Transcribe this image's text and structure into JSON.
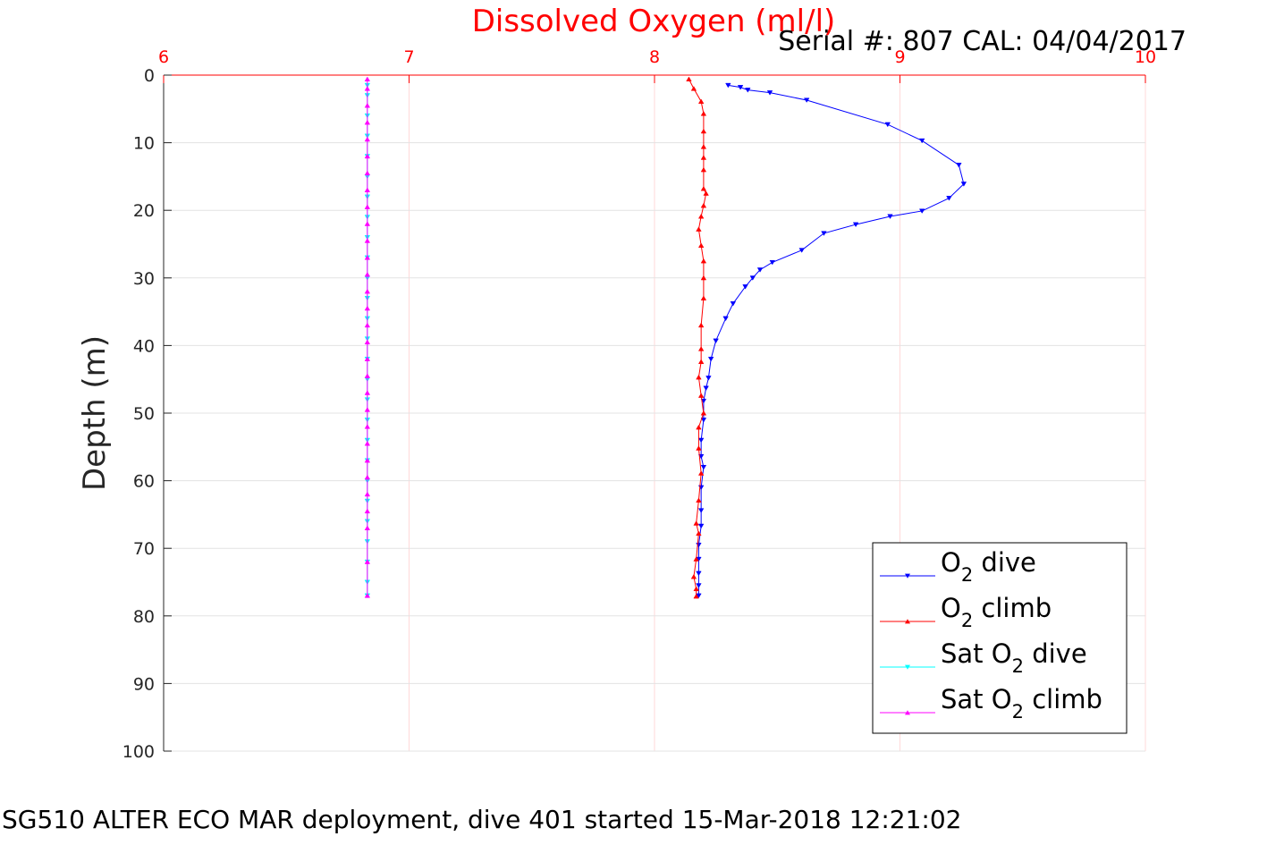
{
  "title": "Dissolved Oxygen (ml/l)",
  "serial_label": "Serial #: 807  CAL: 04/04/2017",
  "footer": "SG510 ALTER ECO MAR deployment, dive 401 started 15-Mar-2018 12:21:02",
  "legend": [
    {
      "prefix": "O",
      "sub": "2",
      "suffix": " dive",
      "color": "#0000ff",
      "marker": "down"
    },
    {
      "prefix": "O",
      "sub": "2",
      "suffix": " climb",
      "color": "#ff0000",
      "marker": "up"
    },
    {
      "prefix": "Sat O",
      "sub": "2",
      "suffix": " dive",
      "color": "#00ffff",
      "marker": "down"
    },
    {
      "prefix": "Sat O",
      "sub": "2",
      "suffix": " climb",
      "color": "#ff00ff",
      "marker": "up"
    }
  ],
  "chart_data": {
    "type": "line",
    "title": "Dissolved Oxygen (ml/l)",
    "xlabel": "",
    "ylabel": "Depth (m)",
    "xlim": [
      6,
      10
    ],
    "ylim": [
      0,
      100
    ],
    "y_reversed": true,
    "x_axis_position": "top",
    "xticks": [
      6,
      7,
      8,
      9,
      10
    ],
    "yticks": [
      0,
      10,
      20,
      30,
      40,
      50,
      60,
      70,
      80,
      90,
      100
    ],
    "grid": true,
    "legend_position": "lower-right",
    "series": [
      {
        "name": "O2 dive",
        "color": "#0000ff",
        "marker": "triangle-down",
        "x": [
          8.3,
          8.35,
          8.38,
          8.47,
          8.62,
          8.95,
          9.09,
          9.24,
          9.26,
          9.2,
          9.09,
          8.96,
          8.82,
          8.69,
          8.6,
          8.48,
          8.43,
          8.4,
          8.37,
          8.32,
          8.29,
          8.25,
          8.23,
          8.22,
          8.21,
          8.2,
          8.2,
          8.19,
          8.19,
          8.2,
          8.19,
          8.19,
          8.19,
          8.18,
          8.18,
          8.18,
          8.18,
          8.18
        ],
        "y": [
          1.5,
          1.8,
          2.2,
          2.6,
          3.7,
          7.3,
          9.7,
          13.3,
          16.1,
          18.2,
          20.1,
          20.9,
          22.1,
          23.4,
          25.9,
          27.7,
          28.8,
          30.0,
          31.3,
          33.8,
          36.0,
          39.3,
          42.0,
          44.8,
          46.3,
          48.2,
          51.0,
          54.0,
          56.4,
          58.0,
          61.0,
          64.4,
          66.7,
          69.5,
          71.6,
          73.7,
          75.5,
          77.0
        ]
      },
      {
        "name": "O2 climb",
        "color": "#ff0000",
        "marker": "triangle-up",
        "x": [
          8.14,
          8.16,
          8.19,
          8.2,
          8.2,
          8.2,
          8.2,
          8.2,
          8.2,
          8.21,
          8.2,
          8.19,
          8.18,
          8.19,
          8.2,
          8.2,
          8.2,
          8.19,
          8.19,
          8.19,
          8.18,
          8.19,
          8.2,
          8.18,
          8.18,
          8.19,
          8.18,
          8.17,
          8.18,
          8.17,
          8.16,
          8.17,
          8.17
        ],
        "y": [
          0.6,
          2.0,
          3.9,
          5.7,
          8.3,
          10.6,
          12.2,
          14.0,
          16.8,
          17.5,
          19.3,
          20.9,
          22.8,
          25.2,
          27.5,
          30.0,
          33.0,
          37.0,
          40.5,
          42.4,
          44.7,
          47.4,
          50.0,
          52.1,
          55.2,
          58.9,
          62.9,
          66.3,
          67.8,
          71.6,
          74.2,
          76.0,
          77.1
        ]
      },
      {
        "name": "Sat O2 dive",
        "color": "#00ffff",
        "marker": "triangle-down",
        "x": [
          6.83,
          6.83,
          6.83,
          6.83,
          6.83,
          6.83,
          6.83,
          6.83,
          6.83,
          6.83,
          6.83,
          6.83,
          6.83,
          6.83,
          6.83,
          6.83,
          6.83,
          6.83,
          6.83,
          6.83,
          6.83,
          6.83,
          6.83,
          6.83,
          6.83,
          6.83,
          6.83
        ],
        "y": [
          1.5,
          3.0,
          6.0,
          9.0,
          12.0,
          15.0,
          18.0,
          21.0,
          24.0,
          27.0,
          30.0,
          33.0,
          36.0,
          39.0,
          42.0,
          45.0,
          48.0,
          51.0,
          54.0,
          57.0,
          60.0,
          63.0,
          66.0,
          69.0,
          72.0,
          75.0,
          77.0
        ]
      },
      {
        "name": "Sat O2 climb",
        "color": "#ff00ff",
        "marker": "triangle-up",
        "x": [
          6.83,
          6.83,
          6.83,
          6.83,
          6.83,
          6.83,
          6.83,
          6.83,
          6.83,
          6.83,
          6.83,
          6.83,
          6.83,
          6.83,
          6.83,
          6.83,
          6.83,
          6.83,
          6.83,
          6.83,
          6.83,
          6.83,
          6.83,
          6.83,
          6.83,
          6.83,
          6.83,
          6.83,
          6.83,
          6.83
        ],
        "y": [
          0.6,
          2.0,
          4.5,
          7.0,
          9.5,
          12.0,
          14.5,
          17.0,
          19.5,
          22.0,
          24.5,
          27.0,
          29.5,
          32.0,
          34.5,
          37.0,
          39.5,
          42.0,
          44.5,
          47.0,
          49.5,
          52.0,
          54.5,
          57.0,
          59.5,
          62.0,
          64.5,
          67.0,
          72.0,
          77.0
        ]
      }
    ]
  }
}
